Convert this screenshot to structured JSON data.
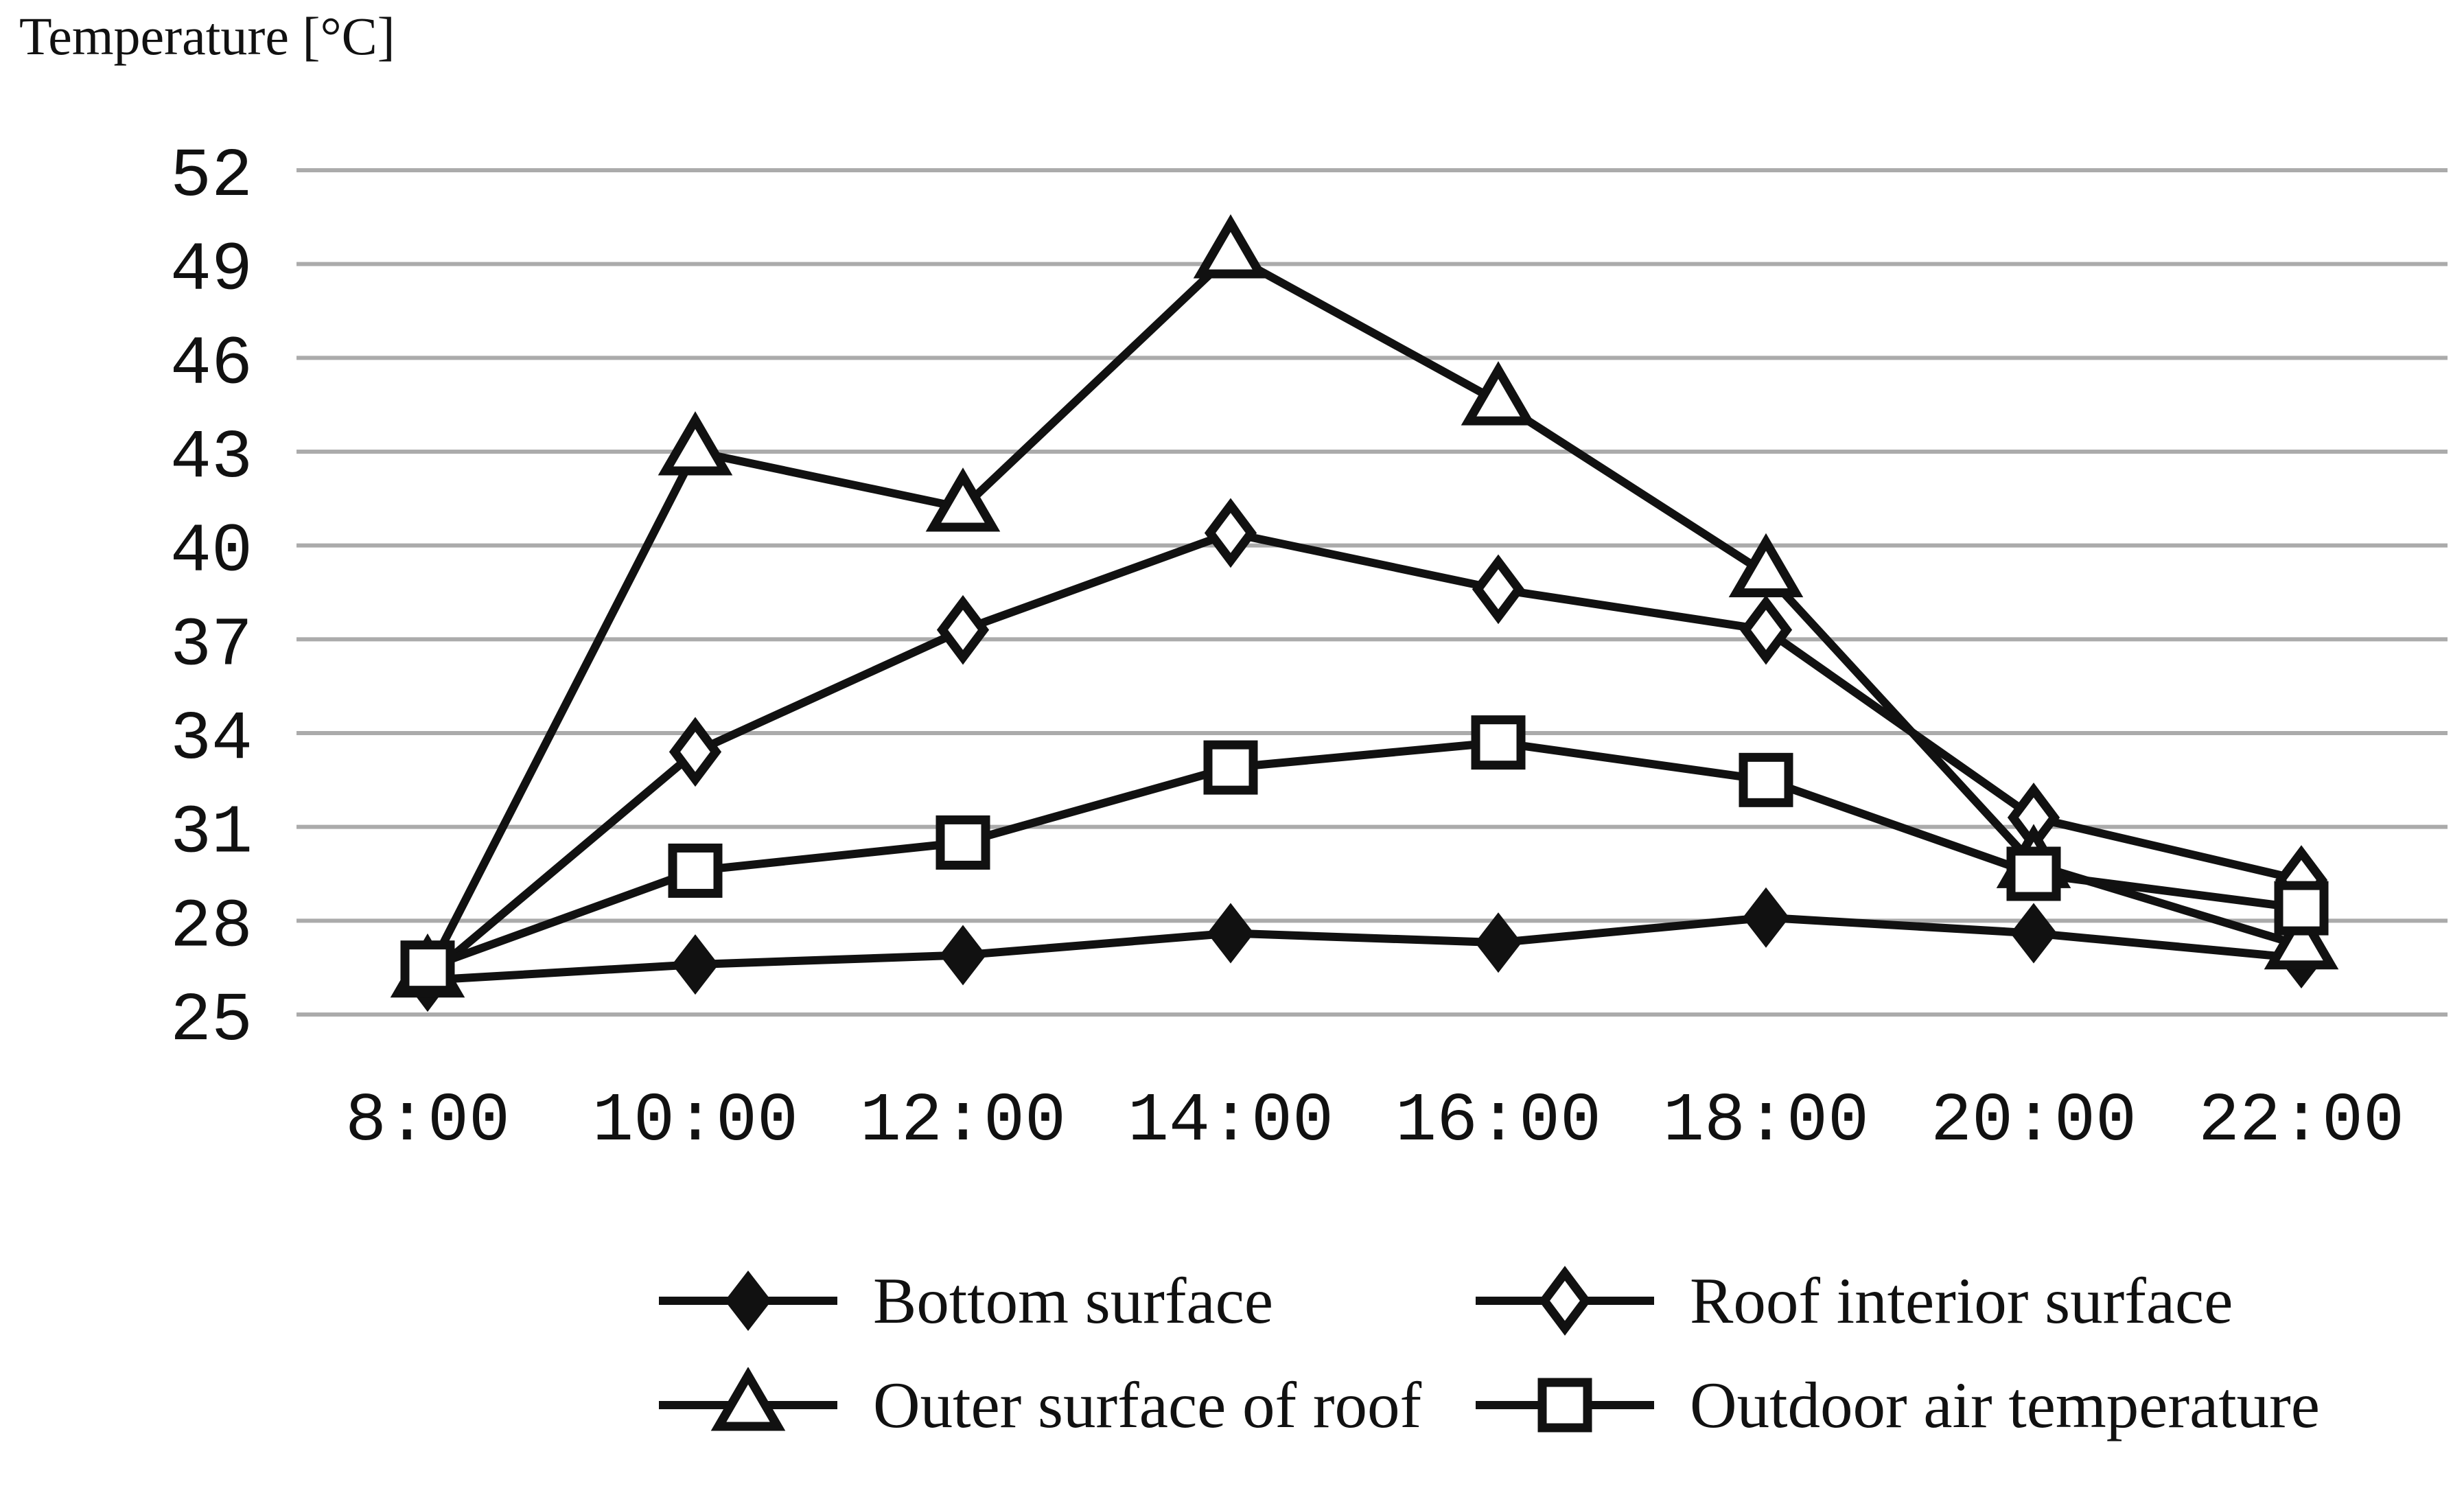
{
  "title": "Temperature [°C]",
  "legend": {
    "items": [
      {
        "label": "Bottom surface",
        "marker": "filled-diamond"
      },
      {
        "label": "Roof interior surface",
        "marker": "open-diamond"
      },
      {
        "label": "Outer surface of roof",
        "marker": "open-triangle"
      },
      {
        "label": "Outdoor air temperature",
        "marker": "open-square"
      }
    ]
  },
  "chart_data": {
    "type": "line",
    "title": "Temperature [°C]",
    "xlabel": "",
    "ylabel": "Temperature [°C]",
    "categories": [
      "8:00",
      "10:00",
      "12:00",
      "14:00",
      "16:00",
      "18:00",
      "20:00",
      "22:00"
    ],
    "series": [
      {
        "name": "Bottom surface",
        "marker": "filled-diamond",
        "values": [
          26.1,
          26.6,
          26.9,
          27.6,
          27.3,
          28.1,
          27.6,
          26.8
        ]
      },
      {
        "name": "Roof interior surface",
        "marker": "open-diamond",
        "values": [
          26.2,
          33.4,
          37.3,
          40.4,
          38.6,
          37.3,
          31.3,
          29.3
        ]
      },
      {
        "name": "Outer surface of roof",
        "marker": "open-triangle",
        "values": [
          26.3,
          43.0,
          41.2,
          49.3,
          44.6,
          39.1,
          29.8,
          27.2
        ]
      },
      {
        "name": "Outdoor air temperature",
        "marker": "open-square",
        "values": [
          26.5,
          29.6,
          30.5,
          32.9,
          33.7,
          32.5,
          29.5,
          28.4
        ]
      }
    ],
    "ylim": [
      25,
      52
    ],
    "y_ticks": [
      25,
      28,
      31,
      34,
      37,
      40,
      43,
      46,
      49,
      52
    ],
    "grid": true,
    "legend_position": "bottom",
    "colors": {
      "line": "#111111",
      "grid": "#ababab",
      "text": "#111111",
      "background": "#ffffff"
    }
  }
}
